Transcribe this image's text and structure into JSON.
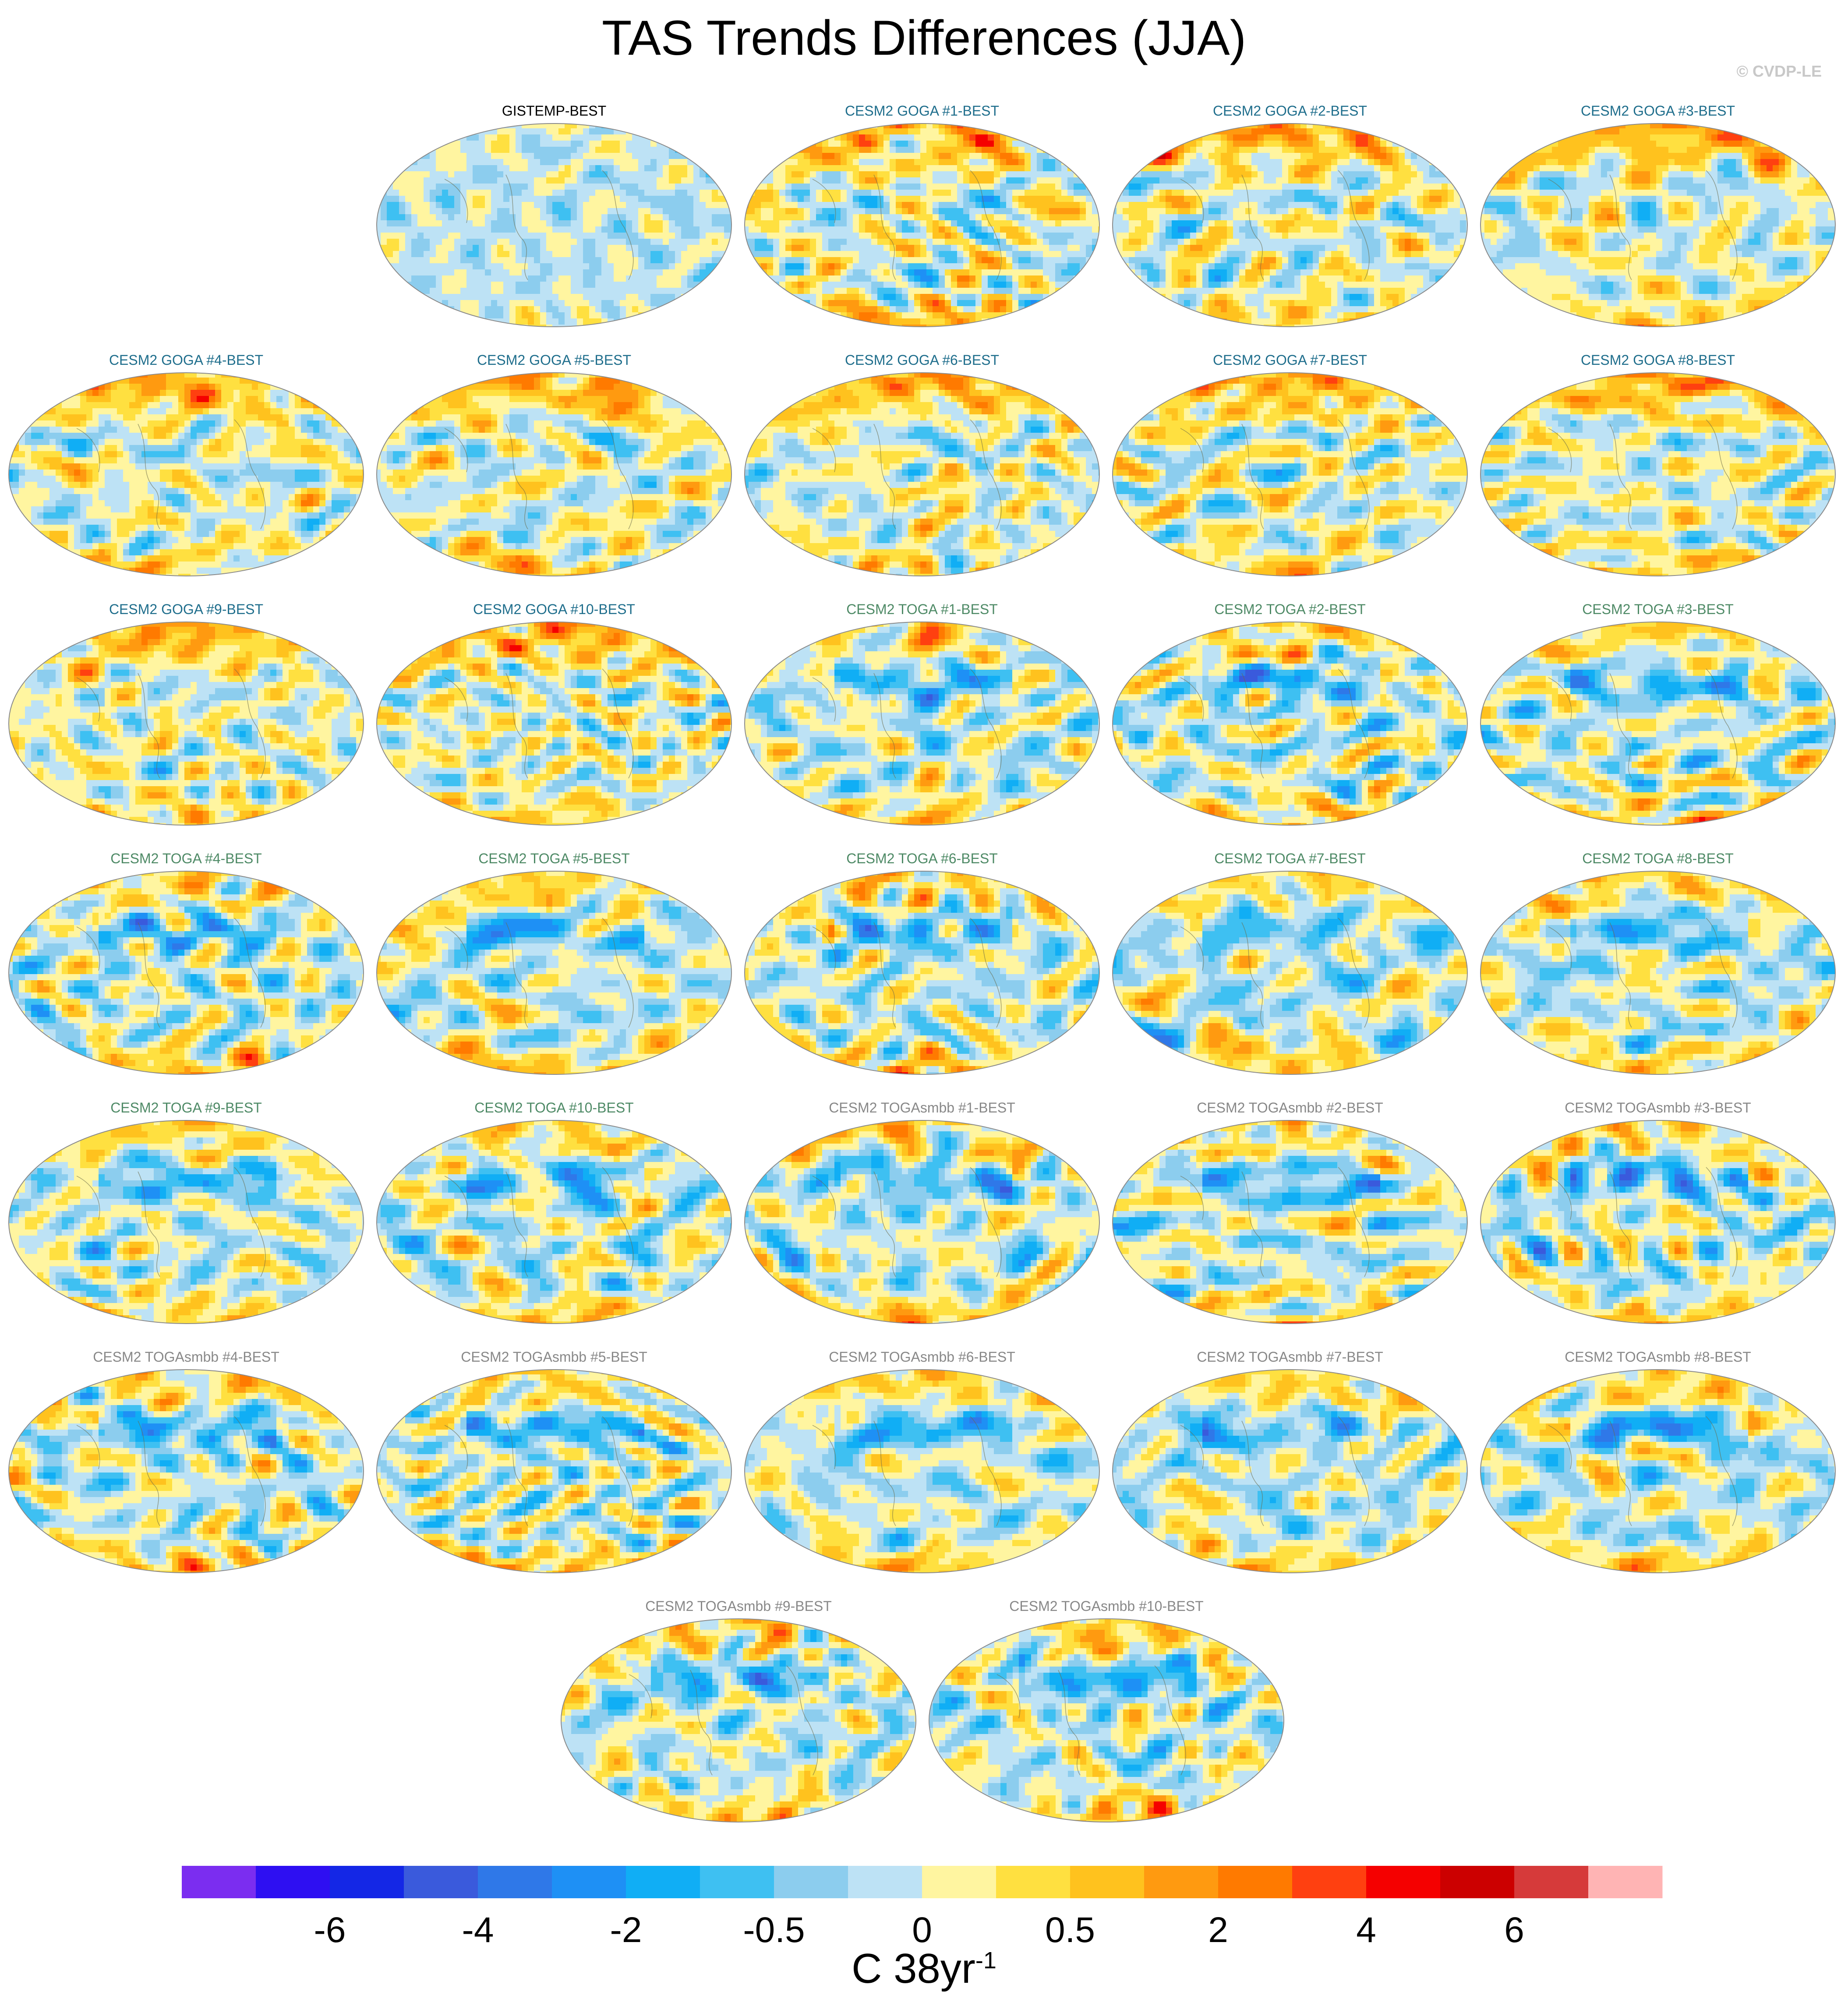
{
  "title": "TAS Trends Differences (JJA)",
  "watermark": "© CVDP-LE",
  "colors": {
    "title_black": "#000000",
    "title_goga": "#1f6e8c",
    "title_toga": "#4e8a66",
    "title_togasmbb": "#888888",
    "missing_land": "#ffffff"
  },
  "panels": [
    {
      "title": "GISTEMP-BEST",
      "group": "obs"
    },
    {
      "title": "CESM2 GOGA #1-BEST",
      "group": "goga"
    },
    {
      "title": "CESM2 GOGA #2-BEST",
      "group": "goga"
    },
    {
      "title": "CESM2 GOGA #3-BEST",
      "group": "goga"
    },
    {
      "title": "CESM2 GOGA #4-BEST",
      "group": "goga"
    },
    {
      "title": "CESM2 GOGA #5-BEST",
      "group": "goga"
    },
    {
      "title": "CESM2 GOGA #6-BEST",
      "group": "goga"
    },
    {
      "title": "CESM2 GOGA #7-BEST",
      "group": "goga"
    },
    {
      "title": "CESM2 GOGA #8-BEST",
      "group": "goga"
    },
    {
      "title": "CESM2 GOGA #9-BEST",
      "group": "goga"
    },
    {
      "title": "CESM2 GOGA #10-BEST",
      "group": "goga"
    },
    {
      "title": "CESM2 TOGA #1-BEST",
      "group": "toga"
    },
    {
      "title": "CESM2 TOGA #2-BEST",
      "group": "toga"
    },
    {
      "title": "CESM2 TOGA #3-BEST",
      "group": "toga"
    },
    {
      "title": "CESM2 TOGA #4-BEST",
      "group": "toga"
    },
    {
      "title": "CESM2 TOGA #5-BEST",
      "group": "toga"
    },
    {
      "title": "CESM2 TOGA #6-BEST",
      "group": "toga"
    },
    {
      "title": "CESM2 TOGA #7-BEST",
      "group": "toga"
    },
    {
      "title": "CESM2 TOGA #8-BEST",
      "group": "toga"
    },
    {
      "title": "CESM2 TOGA #9-BEST",
      "group": "toga"
    },
    {
      "title": "CESM2 TOGA #10-BEST",
      "group": "toga"
    },
    {
      "title": "CESM2 TOGAsmbb #1-BEST",
      "group": "togasmbb"
    },
    {
      "title": "CESM2 TOGAsmbb #2-BEST",
      "group": "togasmbb"
    },
    {
      "title": "CESM2 TOGAsmbb #3-BEST",
      "group": "togasmbb"
    },
    {
      "title": "CESM2 TOGAsmbb #4-BEST",
      "group": "togasmbb"
    },
    {
      "title": "CESM2 TOGAsmbb #5-BEST",
      "group": "togasmbb"
    },
    {
      "title": "CESM2 TOGAsmbb #6-BEST",
      "group": "togasmbb"
    },
    {
      "title": "CESM2 TOGAsmbb #7-BEST",
      "group": "togasmbb"
    },
    {
      "title": "CESM2 TOGAsmbb #8-BEST",
      "group": "togasmbb"
    },
    {
      "title": "CESM2 TOGAsmbb #9-BEST",
      "group": "togasmbb"
    },
    {
      "title": "CESM2 TOGAsmbb #10-BEST",
      "group": "togasmbb"
    }
  ],
  "colorbar": {
    "unit_base": "C 38yr",
    "unit_sup": "-1",
    "colors": [
      "#7b2df0",
      "#2e0ff2",
      "#1427e6",
      "#3a5adc",
      "#2f78e8",
      "#1e90f5",
      "#10aef5",
      "#3ec0f2",
      "#8ccdee",
      "#bde2f5",
      "#fff5a0",
      "#ffe040",
      "#ffc21e",
      "#ff9a10",
      "#ff7a00",
      "#ff4010",
      "#f50000",
      "#cc0000",
      "#d63a3a",
      "#ffb4b4"
    ],
    "tick_labels": [
      "-6",
      "-4",
      "-2",
      "-0.5",
      "0",
      "0.5",
      "2",
      "4",
      "6"
    ],
    "tick_boundary_index": [
      2,
      4,
      6,
      8,
      10,
      12,
      14,
      16,
      18
    ]
  },
  "chart_data": {
    "type": "heatmap",
    "title": "TAS Trends Differences (JJA)",
    "map_projection": "global Robinson-style ellipse, Pacific-centered",
    "panel_count": 31,
    "colorbar_label": "C 38yr^-1",
    "colorbar_ticks": [
      -6,
      -4,
      -2,
      -0.5,
      0,
      0.5,
      2,
      4,
      6
    ],
    "colorbar_levels": 20,
    "patterns": {
      "obs": {
        "base": 9,
        "noise": 0.8,
        "nh_warm": 0.4,
        "sh_warm": 1.0,
        "pac_cool": 0.0,
        "seed": 3
      },
      "goga": {
        "base": 9.6,
        "noise": 1.4,
        "nh_warm": 3.2,
        "sh_warm": 2.0,
        "pac_cool": 0.5,
        "seed": 11
      },
      "toga": {
        "base": 9.2,
        "noise": 1.4,
        "nh_warm": 2.0,
        "sh_warm": 3.0,
        "pac_cool": 2.2,
        "seed": 29
      },
      "togasmbb": {
        "base": 9.2,
        "noise": 1.4,
        "nh_warm": 2.0,
        "sh_warm": 3.0,
        "pac_cool": 2.4,
        "seed": 47
      }
    }
  }
}
